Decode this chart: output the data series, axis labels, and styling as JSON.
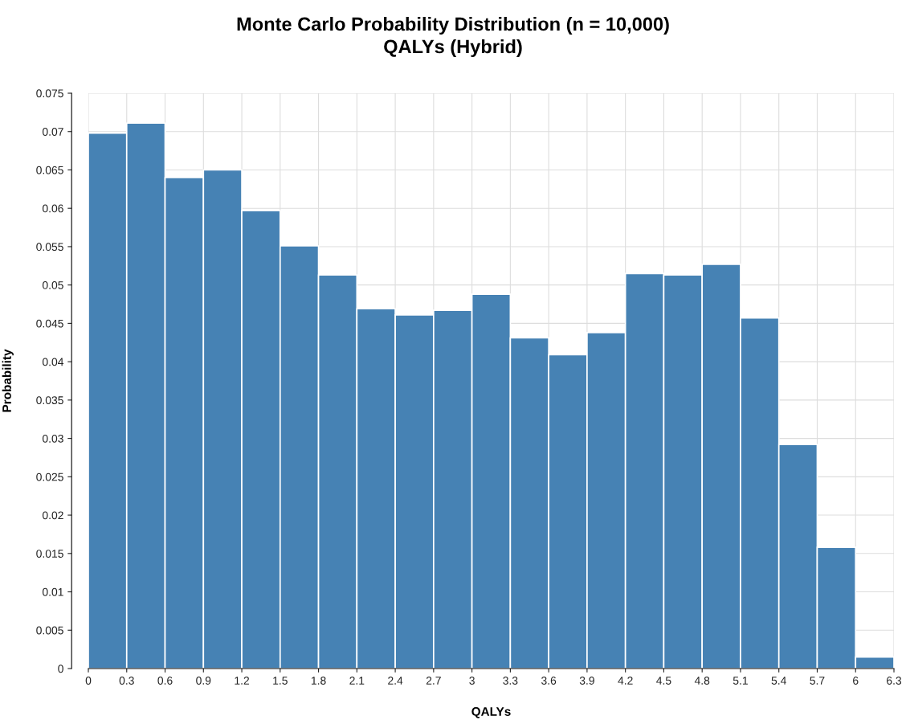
{
  "chart_data": {
    "type": "histogram",
    "title": "Monte Carlo Probability Distribution (n = 10,000)",
    "subtitle": "QALYs (Hybrid)",
    "xlabel": "QALYs",
    "ylabel": "Probability",
    "bins": [
      0,
      0.3,
      0.6,
      0.9,
      1.2,
      1.5,
      1.8,
      2.1,
      2.4,
      2.7,
      3.0,
      3.3,
      3.6,
      3.9,
      4.2,
      4.5,
      4.8,
      5.1,
      5.4,
      5.7,
      6.0,
      6.3
    ],
    "values": [
      0.0698,
      0.0711,
      0.064,
      0.065,
      0.0597,
      0.0551,
      0.0513,
      0.0469,
      0.0461,
      0.0467,
      0.0488,
      0.0431,
      0.0409,
      0.0438,
      0.0515,
      0.0513,
      0.0527,
      0.0457,
      0.0292,
      0.0158,
      0.0015
    ],
    "color": "#4682b4",
    "xlim": [
      0,
      6.3
    ],
    "xticks": [
      0,
      0.3,
      0.6,
      0.9,
      1.2,
      1.5,
      1.8,
      2.1,
      2.4,
      2.7,
      3,
      3.3,
      3.6,
      3.9,
      4.2,
      4.5,
      4.8,
      5.1,
      5.4,
      5.7,
      6,
      6.3
    ],
    "ylim": [
      0,
      0.075
    ],
    "yticks": [
      0,
      0.005,
      0.01,
      0.015,
      0.02,
      0.025,
      0.03,
      0.035,
      0.04,
      0.045,
      0.05,
      0.055,
      0.06,
      0.065,
      0.07,
      0.075
    ],
    "grid": true
  }
}
